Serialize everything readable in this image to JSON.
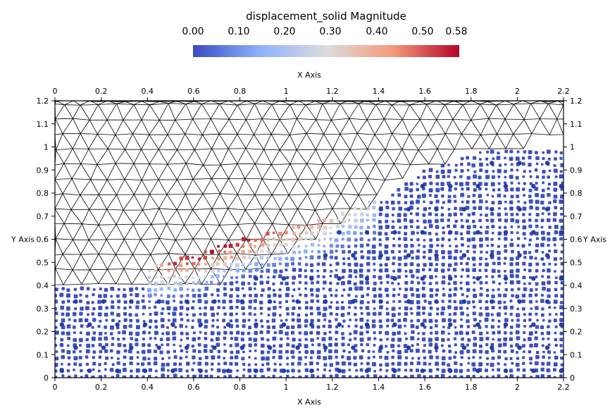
{
  "colorbar": {
    "title": "displacement_solid Magnitude",
    "ticks": [
      "0.00",
      "0.10",
      "0.20",
      "0.30",
      "0.40",
      "0.50",
      "0.58"
    ],
    "tick_values": [
      0,
      0.1,
      0.2,
      0.3,
      0.4,
      0.5,
      0.58
    ],
    "range": [
      0,
      0.58
    ],
    "colormap": [
      "#3b4cc0",
      "#8db0fe",
      "#dddcdc",
      "#f49a7b",
      "#b40426"
    ]
  },
  "chart_data": {
    "type": "scatter",
    "title": "",
    "xlabel": "X Axis",
    "ylabel": "Y Axis",
    "xlim": [
      0,
      2.2
    ],
    "ylim": [
      0,
      1.2
    ],
    "x_ticks": [
      "0",
      "0.2",
      "0.4",
      "0.6",
      "0.8",
      "1",
      "1.2",
      "1.4",
      "1.6",
      "1.8",
      "2",
      "2.2"
    ],
    "y_ticks": [
      "0",
      "0.1",
      "0.2",
      "0.3",
      "0.4",
      "0.5",
      "0.6",
      "0.7",
      "0.8",
      "0.9",
      "1",
      "1.1",
      "1.2"
    ],
    "grid": false,
    "series": [
      {
        "description_color_field": "displacement_solid Magnitude",
        "fluid_mesh_region": "triangular mesh above the granular column and slope",
        "bed_profile": {
          "x": [
            0,
            0.4,
            0.55,
            0.7,
            0.85,
            1.0,
            1.15,
            1.3,
            1.45,
            1.6,
            1.8,
            2.0,
            2.2
          ],
          "y": [
            0.4,
            0.4,
            0.36,
            0.38,
            0.45,
            0.53,
            0.62,
            0.7,
            0.8,
            0.9,
            0.97,
            1.0,
            1.0
          ]
        },
        "max_displacement_band": {
          "x": [
            0.4,
            0.5,
            0.6,
            0.7,
            0.8,
            0.9,
            1.0,
            1.1,
            1.2,
            1.3,
            1.4
          ],
          "y": [
            0.46,
            0.49,
            0.51,
            0.55,
            0.58,
            0.61,
            0.63,
            0.65,
            0.68,
            0.72,
            0.76
          ],
          "magnitude": [
            0.3,
            0.52,
            0.58,
            0.57,
            0.55,
            0.5,
            0.45,
            0.42,
            0.36,
            0.3,
            0.25
          ]
        }
      }
    ]
  }
}
